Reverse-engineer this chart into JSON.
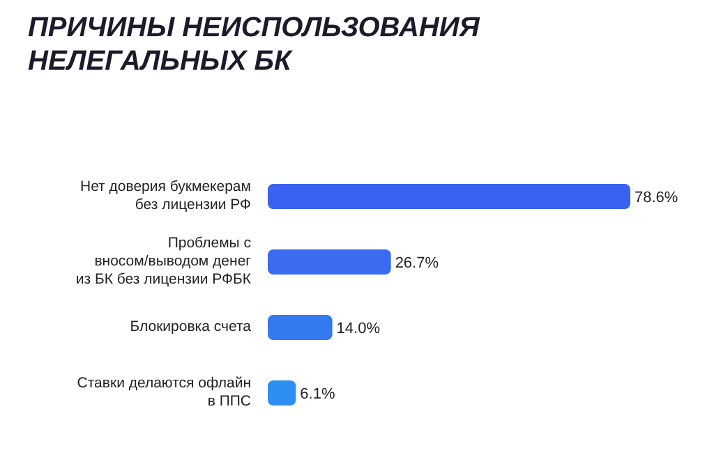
{
  "chart_data": {
    "type": "bar",
    "orientation": "horizontal",
    "title": "ПРИЧИНЫ НЕИСПОЛЬЗОВАНИЯ\nНЕЛЕГАЛЬНЫХ БК",
    "categories": [
      "Нет доверия букмекерам\nбез лицензии РФ",
      "Проблемы с\nвносом/выводом денег\nиз БК без лицензии РФБК",
      "Блокировка счета",
      "Ставки делаются офлайн\nв ППС"
    ],
    "values": [
      78.6,
      26.7,
      14.0,
      6.1
    ],
    "value_labels": [
      "78.6%",
      "26.7%",
      "14.0%",
      "6.1%"
    ],
    "colors": [
      "#3a62f0",
      "#3a6bf0",
      "#3579f0",
      "#2e8ff2"
    ]
  }
}
